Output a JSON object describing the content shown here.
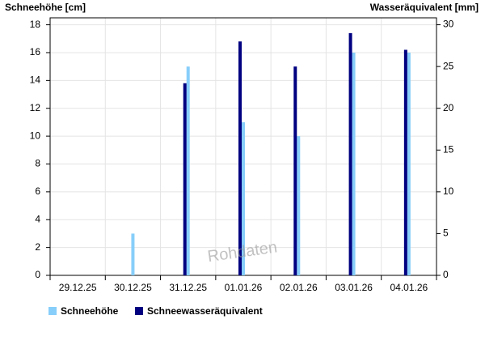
{
  "chart_data": {
    "type": "bar",
    "y_label": "Schneehöhe [cm]",
    "y2_label": "Wasseräquivalent [mm]",
    "watermark": "Rohdaten",
    "categories": [
      "29.12.25",
      "30.12.25",
      "31.12.25",
      "01.01.26",
      "02.01.26",
      "03.01.26",
      "04.01.26"
    ],
    "series": [
      {
        "name": "Schneehöhe",
        "color": "#87cefa",
        "values": [
          null,
          3,
          15,
          11,
          10,
          16,
          16
        ]
      },
      {
        "name": "Schneewasseräquivalent",
        "color": "#000080",
        "axis": "y2",
        "values": [
          null,
          null,
          23,
          28,
          25,
          29,
          27
        ]
      }
    ],
    "ylim": [
      0,
      18.5
    ],
    "yticks": [
      0,
      2,
      4,
      6,
      8,
      10,
      12,
      14,
      16,
      18
    ],
    "y2lim": [
      0,
      30.83
    ],
    "y2ticks": [
      0,
      5,
      10,
      15,
      20,
      25,
      30
    ],
    "grid": true,
    "legend": "bottom"
  }
}
